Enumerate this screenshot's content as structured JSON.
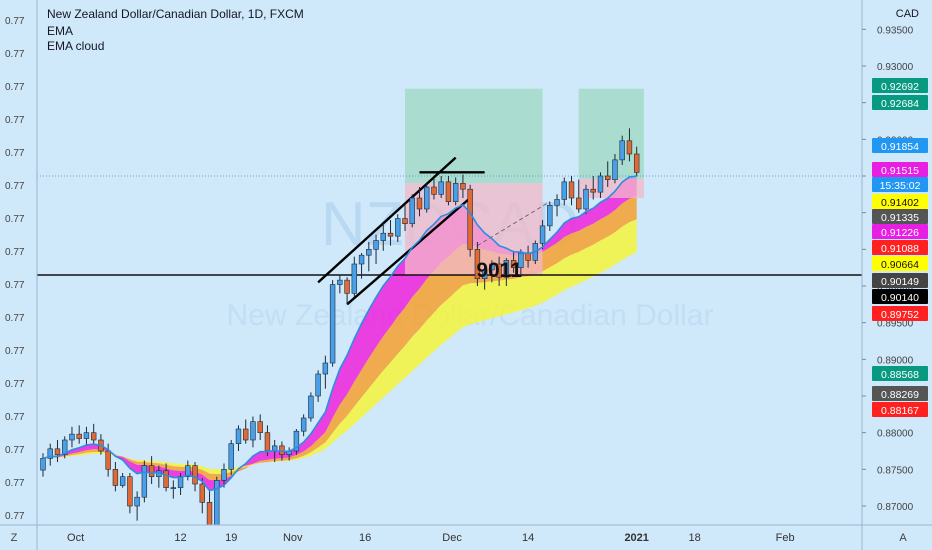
{
  "header": {
    "title": "New Zealand Dollar/Canadian Dollar, 1D, FXCM",
    "indicator_1": "EMA",
    "indicator_2": "EMA cloud"
  },
  "currency": "CAD",
  "watermark": {
    "symbol": "NZDCAD",
    "name": "New Zealand Dollar/Canadian Dollar"
  },
  "annotation_text": "9011",
  "corner_labels": {
    "left": "Z",
    "right": "A"
  },
  "colors": {
    "background": "#cfe8fa",
    "up_body": "#4aa0e8",
    "down_body": "#e06a35",
    "ema_magenta": "#ee22dd",
    "cloud_yellow": "#f5f53a",
    "cloud_orange": "#f6a030",
    "target_zone": "#9dd9c0",
    "stop_zone": "#f2b8c8"
  },
  "left_axis": {
    "ticks": [
      "0.77",
      "0.77",
      "0.77",
      "0.77",
      "0.77",
      "0.77",
      "0.77",
      "0.77",
      "0.77",
      "0.77",
      "0.77",
      "0.77",
      "0.77",
      "0.77",
      "0.77",
      "0.77"
    ]
  },
  "chart_data": {
    "type": "candlestick",
    "title": "New Zealand Dollar/Canadian Dollar, 1D, FXCM",
    "ylim": [
      0.864,
      0.939
    ],
    "x_ticks": [
      "Oct",
      "12",
      "19",
      "Nov",
      "16",
      "Dec",
      "14",
      "2021",
      "18",
      "Feb"
    ],
    "y_ticks": [
      "0.93500",
      "0.93000",
      "0.92500",
      "0.92000",
      "0.91500",
      "0.91000",
      "0.90500",
      "0.90000",
      "0.89500",
      "0.89000",
      "0.88500",
      "0.88000",
      "0.87500",
      "0.87000",
      "0.86500"
    ],
    "price_labels": [
      {
        "text": "0.92692",
        "color": "#089981"
      },
      {
        "text": "0.92684",
        "color": "#089981"
      },
      {
        "text": "0.91854",
        "color": "#2196f3"
      },
      {
        "text": "0.91515",
        "color": "#e91ee3"
      },
      {
        "text": "15:35:02",
        "color": "#2196f3"
      },
      {
        "text": "0.91402",
        "color": "#ffff00"
      },
      {
        "text": "0.91335",
        "color": "#555555"
      },
      {
        "text": "0.91226",
        "color": "#e91ee3"
      },
      {
        "text": "0.91088",
        "color": "#ff2020"
      },
      {
        "text": "0.90664",
        "color": "#ffff00"
      },
      {
        "text": "0.90149",
        "color": "#444444"
      },
      {
        "text": "0.90140",
        "color": "#000000"
      },
      {
        "text": "0.89752",
        "color": "#ff2020"
      },
      {
        "text": "0.88568",
        "color": "#089981"
      },
      {
        "text": "0.88269",
        "color": "#555555"
      },
      {
        "text": "0.88167",
        "color": "#ff2020"
      }
    ],
    "candles": [
      {
        "o": 0.8749,
        "h": 0.8772,
        "l": 0.874,
        "c": 0.8765
      },
      {
        "o": 0.8765,
        "h": 0.8785,
        "l": 0.8755,
        "c": 0.8778
      },
      {
        "o": 0.8778,
        "h": 0.879,
        "l": 0.876,
        "c": 0.877
      },
      {
        "o": 0.877,
        "h": 0.8795,
        "l": 0.8765,
        "c": 0.879
      },
      {
        "o": 0.879,
        "h": 0.8808,
        "l": 0.878,
        "c": 0.8798
      },
      {
        "o": 0.8798,
        "h": 0.881,
        "l": 0.8785,
        "c": 0.8792
      },
      {
        "o": 0.8792,
        "h": 0.8808,
        "l": 0.8782,
        "c": 0.88
      },
      {
        "o": 0.88,
        "h": 0.8812,
        "l": 0.8785,
        "c": 0.879
      },
      {
        "o": 0.879,
        "h": 0.8798,
        "l": 0.877,
        "c": 0.8775
      },
      {
        "o": 0.8775,
        "h": 0.8785,
        "l": 0.874,
        "c": 0.875
      },
      {
        "o": 0.875,
        "h": 0.876,
        "l": 0.872,
        "c": 0.8728
      },
      {
        "o": 0.8728,
        "h": 0.8745,
        "l": 0.8725,
        "c": 0.874
      },
      {
        "o": 0.874,
        "h": 0.8745,
        "l": 0.869,
        "c": 0.87
      },
      {
        "o": 0.87,
        "h": 0.872,
        "l": 0.868,
        "c": 0.8712
      },
      {
        "o": 0.8712,
        "h": 0.8762,
        "l": 0.8705,
        "c": 0.8755
      },
      {
        "o": 0.8755,
        "h": 0.8768,
        "l": 0.873,
        "c": 0.874
      },
      {
        "o": 0.874,
        "h": 0.8755,
        "l": 0.8725,
        "c": 0.8748
      },
      {
        "o": 0.8748,
        "h": 0.8758,
        "l": 0.872,
        "c": 0.8725
      },
      {
        "o": 0.8725,
        "h": 0.8735,
        "l": 0.871,
        "c": 0.8725
      },
      {
        "o": 0.8725,
        "h": 0.8745,
        "l": 0.8715,
        "c": 0.874
      },
      {
        "o": 0.874,
        "h": 0.8762,
        "l": 0.8735,
        "c": 0.8755
      },
      {
        "o": 0.8755,
        "h": 0.876,
        "l": 0.872,
        "c": 0.873
      },
      {
        "o": 0.873,
        "h": 0.8738,
        "l": 0.869,
        "c": 0.8705
      },
      {
        "o": 0.8705,
        "h": 0.872,
        "l": 0.865,
        "c": 0.8665
      },
      {
        "o": 0.8665,
        "h": 0.874,
        "l": 0.865,
        "c": 0.8735
      },
      {
        "o": 0.8735,
        "h": 0.8758,
        "l": 0.8725,
        "c": 0.875
      },
      {
        "o": 0.875,
        "h": 0.879,
        "l": 0.8742,
        "c": 0.8785
      },
      {
        "o": 0.8785,
        "h": 0.881,
        "l": 0.8775,
        "c": 0.8805
      },
      {
        "o": 0.8805,
        "h": 0.8818,
        "l": 0.8785,
        "c": 0.879
      },
      {
        "o": 0.879,
        "h": 0.8822,
        "l": 0.878,
        "c": 0.8815
      },
      {
        "o": 0.8815,
        "h": 0.8825,
        "l": 0.879,
        "c": 0.88
      },
      {
        "o": 0.88,
        "h": 0.881,
        "l": 0.8768,
        "c": 0.8775
      },
      {
        "o": 0.8775,
        "h": 0.879,
        "l": 0.876,
        "c": 0.8782
      },
      {
        "o": 0.8782,
        "h": 0.8788,
        "l": 0.8762,
        "c": 0.877
      },
      {
        "o": 0.877,
        "h": 0.878,
        "l": 0.8762,
        "c": 0.8775
      },
      {
        "o": 0.8775,
        "h": 0.8805,
        "l": 0.877,
        "c": 0.8802
      },
      {
        "o": 0.8802,
        "h": 0.8825,
        "l": 0.8795,
        "c": 0.882
      },
      {
        "o": 0.882,
        "h": 0.8855,
        "l": 0.8815,
        "c": 0.885
      },
      {
        "o": 0.885,
        "h": 0.8885,
        "l": 0.8842,
        "c": 0.888
      },
      {
        "o": 0.888,
        "h": 0.8905,
        "l": 0.886,
        "c": 0.8895
      },
      {
        "o": 0.8895,
        "h": 0.9008,
        "l": 0.889,
        "c": 0.9002
      },
      {
        "o": 0.9002,
        "h": 0.9015,
        "l": 0.899,
        "c": 0.9008
      },
      {
        "o": 0.9008,
        "h": 0.9012,
        "l": 0.8975,
        "c": 0.899
      },
      {
        "o": 0.899,
        "h": 0.904,
        "l": 0.8985,
        "c": 0.903
      },
      {
        "o": 0.903,
        "h": 0.9045,
        "l": 0.901,
        "c": 0.9042
      },
      {
        "o": 0.9042,
        "h": 0.906,
        "l": 0.902,
        "c": 0.905
      },
      {
        "o": 0.905,
        "h": 0.907,
        "l": 0.903,
        "c": 0.9062
      },
      {
        "o": 0.9062,
        "h": 0.9085,
        "l": 0.9048,
        "c": 0.9072
      },
      {
        "o": 0.9072,
        "h": 0.909,
        "l": 0.9055,
        "c": 0.9068
      },
      {
        "o": 0.9068,
        "h": 0.9098,
        "l": 0.906,
        "c": 0.9092
      },
      {
        "o": 0.9092,
        "h": 0.911,
        "l": 0.9075,
        "c": 0.9085
      },
      {
        "o": 0.9085,
        "h": 0.9125,
        "l": 0.908,
        "c": 0.912
      },
      {
        "o": 0.912,
        "h": 0.9135,
        "l": 0.9095,
        "c": 0.9105
      },
      {
        "o": 0.9105,
        "h": 0.914,
        "l": 0.91,
        "c": 0.9135
      },
      {
        "o": 0.9135,
        "h": 0.9148,
        "l": 0.9118,
        "c": 0.9125
      },
      {
        "o": 0.9125,
        "h": 0.915,
        "l": 0.912,
        "c": 0.9142
      },
      {
        "o": 0.9142,
        "h": 0.915,
        "l": 0.911,
        "c": 0.9115
      },
      {
        "o": 0.9115,
        "h": 0.9148,
        "l": 0.911,
        "c": 0.914
      },
      {
        "o": 0.914,
        "h": 0.9152,
        "l": 0.912,
        "c": 0.9132
      },
      {
        "o": 0.9132,
        "h": 0.9138,
        "l": 0.904,
        "c": 0.905
      },
      {
        "o": 0.905,
        "h": 0.906,
        "l": 0.9,
        "c": 0.901
      },
      {
        "o": 0.901,
        "h": 0.9028,
        "l": 0.8995,
        "c": 0.9022
      },
      {
        "o": 0.9022,
        "h": 0.9035,
        "l": 0.9005,
        "c": 0.903
      },
      {
        "o": 0.903,
        "h": 0.904,
        "l": 0.9,
        "c": 0.9012
      },
      {
        "o": 0.9012,
        "h": 0.9038,
        "l": 0.9,
        "c": 0.9035
      },
      {
        "o": 0.9035,
        "h": 0.9048,
        "l": 0.9018,
        "c": 0.9025
      },
      {
        "o": 0.9025,
        "h": 0.905,
        "l": 0.9015,
        "c": 0.9045
      },
      {
        "o": 0.9045,
        "h": 0.9055,
        "l": 0.9025,
        "c": 0.9035
      },
      {
        "o": 0.9035,
        "h": 0.9062,
        "l": 0.903,
        "c": 0.9058
      },
      {
        "o": 0.9058,
        "h": 0.909,
        "l": 0.905,
        "c": 0.9082
      },
      {
        "o": 0.9082,
        "h": 0.9115,
        "l": 0.9075,
        "c": 0.911
      },
      {
        "o": 0.911,
        "h": 0.9125,
        "l": 0.9095,
        "c": 0.9118
      },
      {
        "o": 0.9118,
        "h": 0.9148,
        "l": 0.911,
        "c": 0.9142
      },
      {
        "o": 0.9142,
        "h": 0.915,
        "l": 0.911,
        "c": 0.912
      },
      {
        "o": 0.912,
        "h": 0.9145,
        "l": 0.91,
        "c": 0.9105
      },
      {
        "o": 0.9105,
        "h": 0.9138,
        "l": 0.9098,
        "c": 0.9132
      },
      {
        "o": 0.9132,
        "h": 0.915,
        "l": 0.9118,
        "c": 0.9128
      },
      {
        "o": 0.9128,
        "h": 0.9155,
        "l": 0.912,
        "c": 0.915
      },
      {
        "o": 0.915,
        "h": 0.917,
        "l": 0.9135,
        "c": 0.9145
      },
      {
        "o": 0.9145,
        "h": 0.918,
        "l": 0.914,
        "c": 0.9172
      },
      {
        "o": 0.9172,
        "h": 0.9205,
        "l": 0.9165,
        "c": 0.9198
      },
      {
        "o": 0.9198,
        "h": 0.9215,
        "l": 0.917,
        "c": 0.918
      },
      {
        "o": 0.918,
        "h": 0.919,
        "l": 0.915,
        "c": 0.9155
      }
    ]
  }
}
